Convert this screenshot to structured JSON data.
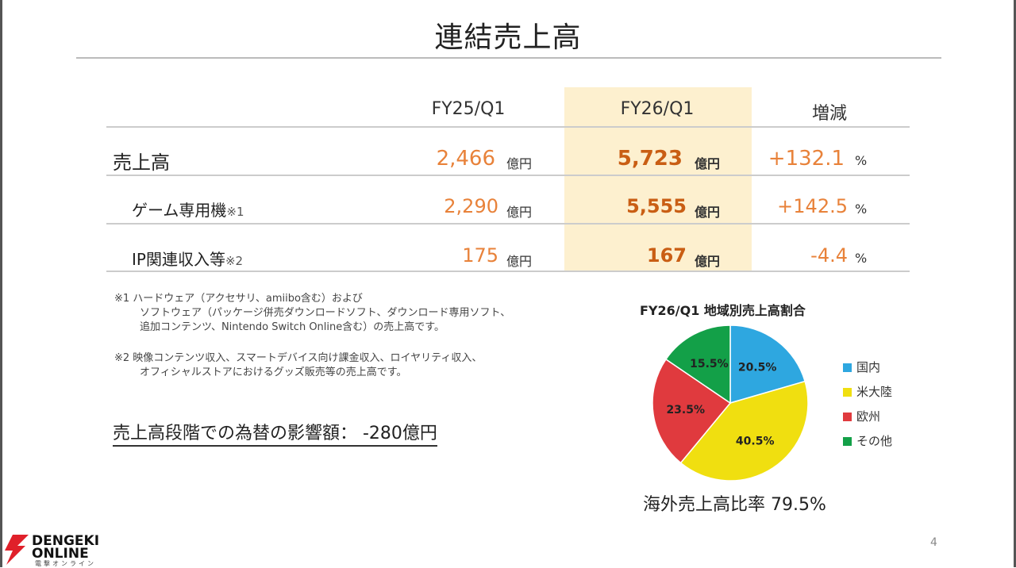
{
  "title": "連結売上高",
  "table": {
    "headers": [
      "FY25/Q1",
      "FY26/Q1",
      "増減"
    ],
    "rows": [
      {
        "label": "売上高",
        "sup": "",
        "fy25": "2,466",
        "fy26": "5,723",
        "change": "+132.1"
      },
      {
        "label": "ゲーム専用機",
        "sup": "※1",
        "fy25": "2,290",
        "fy26": "5,555",
        "change": "+142.5"
      },
      {
        "label": "IP関連収入等",
        "sup": "※2",
        "fy25": "175",
        "fy26": "167",
        "change": "-4.4"
      }
    ],
    "unit_yen": "億円",
    "unit_pct": "%"
  },
  "notes": {
    "note1": [
      "※1 ハードウェア（アクセサリ、amiibo含む）および",
      "ソフトウェア（パッケージ併売ダウンロードソフト、ダウンロード専用ソフト、",
      "追加コンテンツ、Nintendo Switch Online含む）の売上高です。"
    ],
    "note2": [
      "※2 映像コンテンツ収入、スマートデバイス向け課金収入、ロイヤリティ収入、",
      "オフィシャルストアにおけるグッズ販売等の売上高です。"
    ]
  },
  "fx_impact": "売上高段階での為替の影響額： -280億円",
  "chart_data": {
    "type": "pie",
    "title": "FY26/Q1 地域別売上高割合",
    "categories": [
      "国内",
      "米大陸",
      "欧州",
      "その他"
    ],
    "values": [
      20.5,
      40.5,
      23.5,
      15.5
    ],
    "labels": [
      "20.5%",
      "40.5%",
      "23.5%",
      "15.5%"
    ],
    "colors": [
      "#2ea7e0",
      "#f0df10",
      "#e03a3e",
      "#13a048"
    ],
    "legend": "right"
  },
  "overseas_ratio": "海外売上高比率 79.5%",
  "page_number": "4",
  "logo": {
    "line1": "DENGEKI",
    "line2": "ONLINE",
    "line3": "電撃オンライン"
  }
}
